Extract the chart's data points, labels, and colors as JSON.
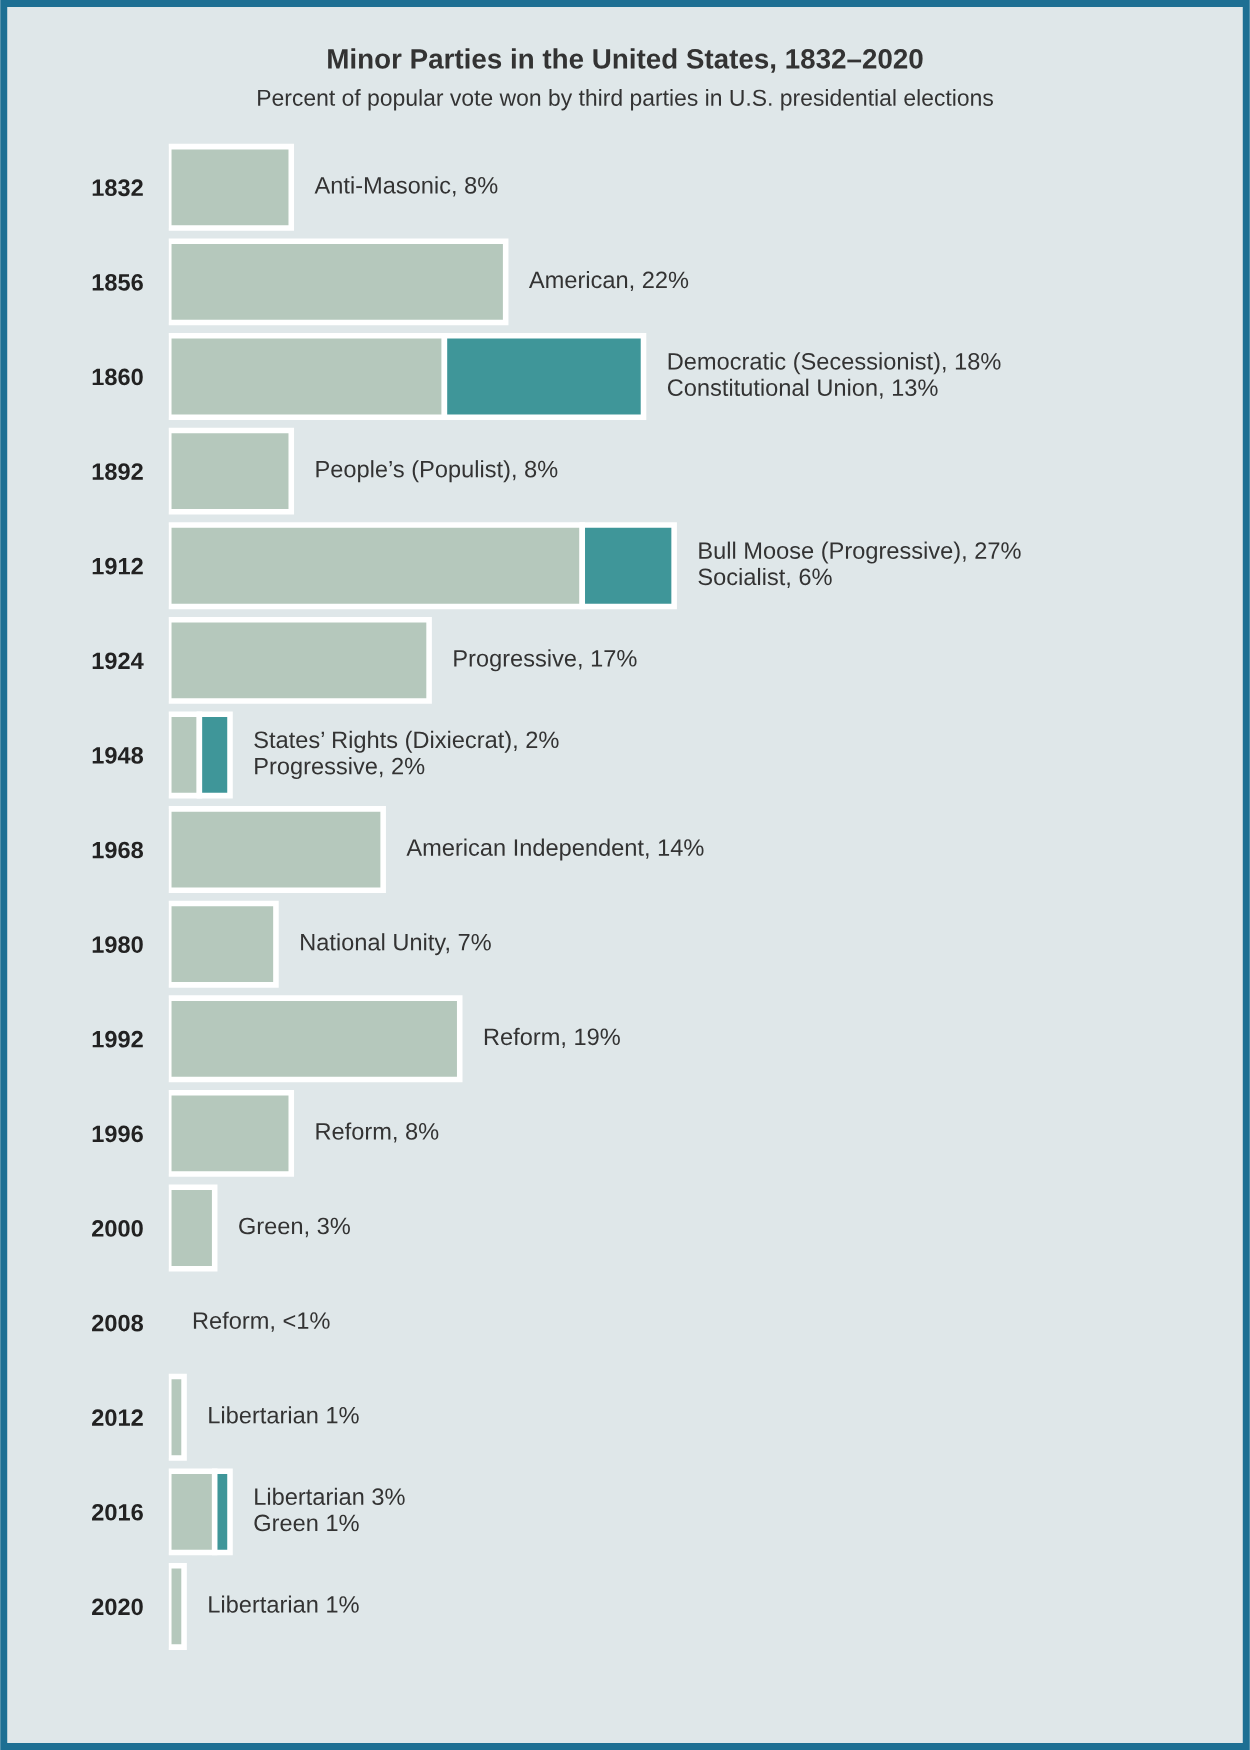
{
  "chart_data": {
    "type": "bar",
    "orientation": "horizontal",
    "stacked": true,
    "title": "Minor Parties in the United States, 1832–2020",
    "subtitle": "Percent of popular vote won by third parties in U.S. presidential elections",
    "categories": [
      "1832",
      "1856",
      "1860",
      "1892",
      "1912",
      "1924",
      "1948",
      "1968",
      "1980",
      "1992",
      "1996",
      "2000",
      "2008",
      "2012",
      "2016",
      "2020"
    ],
    "tick_labels": "y",
    "grid": false,
    "legend": false,
    "series": [
      {
        "color": "#b5c8bc",
        "values": [
          8,
          22,
          18,
          8,
          27,
          17,
          2,
          14,
          7,
          19,
          8,
          3,
          null,
          1,
          3,
          1
        ],
        "value_labels": [
          "Anti-Masonic, 8%",
          "American, 22%",
          null,
          "People’s (Populist), 8%",
          null,
          "Progressive, 17%",
          null,
          "American Independent, 14%",
          "National Unity, 7%",
          "Reform, 19%",
          "Reform, 8%",
          "Green, 3%",
          "Reform, <1%",
          "Libertarian 1%",
          null,
          "Libertarian 1%"
        ]
      },
      {
        "color": "#3f9699",
        "values": [
          null,
          null,
          13,
          null,
          6,
          null,
          2,
          null,
          null,
          null,
          null,
          null,
          null,
          null,
          1,
          null
        ],
        "value_labels": [
          null,
          null,
          "Democratic (Secessionist), 18%\nConstitutional Union, 13%",
          null,
          "Bull Moose (Progressive), 27%\nSocialist, 6%",
          null,
          "States’ Rights (Dixiecrat), 2%\nProgressive, 2%",
          null,
          null,
          null,
          null,
          null,
          null,
          null,
          "Libertarian 3%\nGreen 1%",
          null
        ]
      }
    ]
  }
}
